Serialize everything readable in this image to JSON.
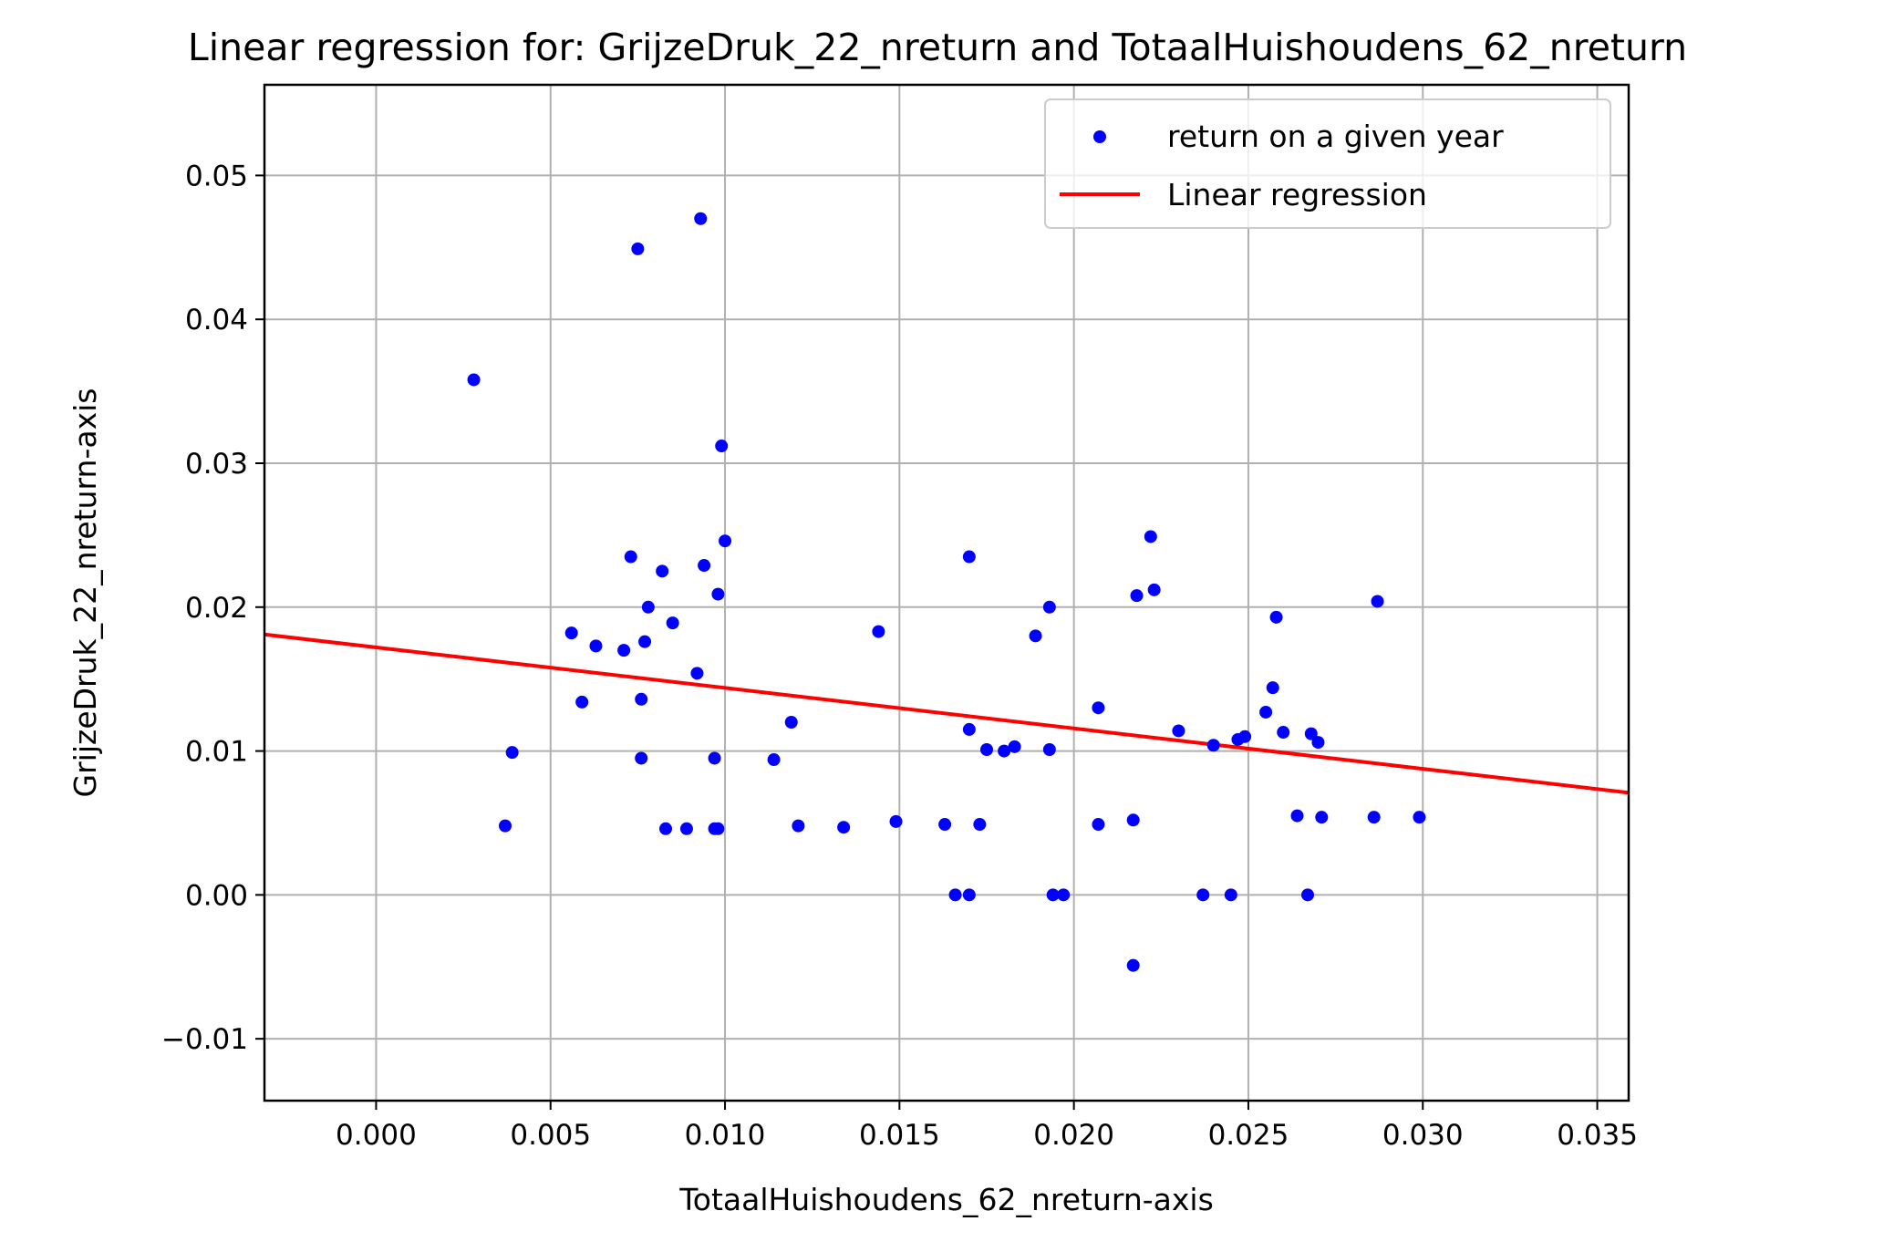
{
  "chart_data": {
    "type": "scatter",
    "title": "Linear regression for: GrijzeDruk_22_nreturn and TotaalHuishoudens_62_nreturn",
    "xlabel": "TotaalHuishoudens_62_nreturn-axis",
    "ylabel": "GrijzeDruk_22_nreturn-axis",
    "xlim": [
      -0.0032,
      0.0359
    ],
    "ylim": [
      -0.0143,
      0.0563
    ],
    "xticks": [
      0.0,
      0.005,
      0.01,
      0.015,
      0.02,
      0.025,
      0.03,
      0.035
    ],
    "xtick_labels": [
      "0.000",
      "0.005",
      "0.010",
      "0.015",
      "0.020",
      "0.025",
      "0.030",
      "0.035"
    ],
    "yticks": [
      -0.01,
      0.0,
      0.01,
      0.02,
      0.03,
      0.04,
      0.05
    ],
    "ytick_labels": [
      "−0.01",
      "0.00",
      "0.01",
      "0.02",
      "0.03",
      "0.04",
      "0.05"
    ],
    "grid": true,
    "legend_position": "top-right",
    "colors": {
      "scatter": "#0000ff",
      "regression": "#ff0000",
      "grid": "#b0b0b0"
    },
    "series": [
      {
        "name": "return on a given year",
        "kind": "scatter",
        "points": [
          [
            0.0028,
            0.0358
          ],
          [
            0.0037,
            0.0048
          ],
          [
            0.0039,
            0.0099
          ],
          [
            0.0056,
            0.0182
          ],
          [
            0.0059,
            0.0134
          ],
          [
            0.0063,
            0.0173
          ],
          [
            0.0071,
            0.017
          ],
          [
            0.0073,
            0.0235
          ],
          [
            0.0075,
            0.0449
          ],
          [
            0.0076,
            0.0136
          ],
          [
            0.0076,
            0.0095
          ],
          [
            0.0077,
            0.0176
          ],
          [
            0.0078,
            0.02
          ],
          [
            0.0082,
            0.0225
          ],
          [
            0.0083,
            0.0046
          ],
          [
            0.0085,
            0.0189
          ],
          [
            0.0089,
            0.0046
          ],
          [
            0.0092,
            0.0154
          ],
          [
            0.0093,
            0.047
          ],
          [
            0.0094,
            0.0229
          ],
          [
            0.0097,
            0.0095
          ],
          [
            0.0097,
            0.0046
          ],
          [
            0.0098,
            0.0209
          ],
          [
            0.0098,
            0.0046
          ],
          [
            0.0099,
            0.0312
          ],
          [
            0.01,
            0.0246
          ],
          [
            0.0114,
            0.0094
          ],
          [
            0.0119,
            0.012
          ],
          [
            0.0121,
            0.0048
          ],
          [
            0.0134,
            0.0047
          ],
          [
            0.0144,
            0.0183
          ],
          [
            0.0149,
            0.0051
          ],
          [
            0.0163,
            0.0049
          ],
          [
            0.0166,
            0.0
          ],
          [
            0.017,
            0.0235
          ],
          [
            0.017,
            0.0115
          ],
          [
            0.017,
            0.0
          ],
          [
            0.0173,
            0.0049
          ],
          [
            0.0175,
            0.0101
          ],
          [
            0.018,
            0.01
          ],
          [
            0.0183,
            0.0103
          ],
          [
            0.0189,
            0.018
          ],
          [
            0.0193,
            0.02
          ],
          [
            0.0193,
            0.0101
          ],
          [
            0.0194,
            0.0
          ],
          [
            0.0197,
            0.0
          ],
          [
            0.0207,
            0.013
          ],
          [
            0.0207,
            0.0049
          ],
          [
            0.0217,
            -0.0049
          ],
          [
            0.0217,
            0.0052
          ],
          [
            0.0218,
            0.0208
          ],
          [
            0.0222,
            0.0249
          ],
          [
            0.0223,
            0.0212
          ],
          [
            0.023,
            0.0114
          ],
          [
            0.0237,
            0.0
          ],
          [
            0.024,
            0.0104
          ],
          [
            0.0245,
            0.0
          ],
          [
            0.0247,
            0.0108
          ],
          [
            0.0249,
            0.011
          ],
          [
            0.0255,
            0.0127
          ],
          [
            0.0257,
            0.0144
          ],
          [
            0.0258,
            0.0193
          ],
          [
            0.026,
            0.0113
          ],
          [
            0.0264,
            0.0055
          ],
          [
            0.0267,
            0.0
          ],
          [
            0.0268,
            0.0112
          ],
          [
            0.027,
            0.0106
          ],
          [
            0.0271,
            0.0054
          ],
          [
            0.0286,
            0.0054
          ],
          [
            0.0287,
            0.0204
          ],
          [
            0.0299,
            0.0054
          ]
        ]
      },
      {
        "name": "Linear regression",
        "kind": "line",
        "points": [
          [
            -0.0032,
            0.0181
          ],
          [
            0.0359,
            0.0071
          ]
        ]
      }
    ]
  }
}
